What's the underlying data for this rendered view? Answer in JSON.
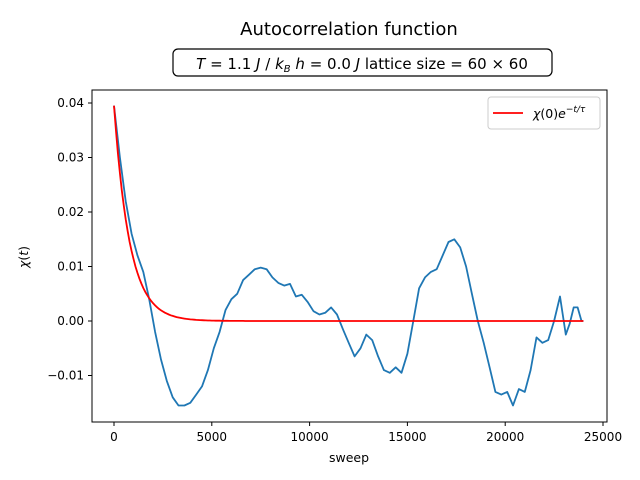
{
  "chart_data": {
    "type": "line",
    "title": "Autocorrelation function",
    "subtitle": "T = 1.1 J / k_B   h = 0.0 J   lattice size = 60 × 60",
    "subtitle_parts": {
      "T": "T = 1.1 J / k_B",
      "h": "h = 0.0 J",
      "lattice": "lattice size = 60 × 60"
    },
    "xlabel": "sweep",
    "ylabel": "χ(t)",
    "xlim": [
      -1200,
      25200
    ],
    "ylim": [
      -0.018,
      0.042
    ],
    "xticks": [
      0,
      5000,
      10000,
      15000,
      20000,
      25000
    ],
    "xtick_labels": [
      "0",
      "5000",
      "10000",
      "15000",
      "20000",
      "25000"
    ],
    "yticks": [
      -0.01,
      0.0,
      0.01,
      0.02,
      0.03,
      0.04
    ],
    "ytick_labels": [
      "−0.01",
      "0.00",
      "0.01",
      "0.02",
      "0.03",
      "0.04"
    ],
    "grid": false,
    "legend": {
      "position": "upper right",
      "entries": [
        "χ(0)e^{-t/τ}"
      ]
    },
    "series": [
      {
        "name": "χ(t)",
        "color": "#1f77b4",
        "x": [
          0,
          300,
          600,
          900,
          1200,
          1500,
          1800,
          2100,
          2400,
          2700,
          3000,
          3300,
          3600,
          3900,
          4200,
          4500,
          4800,
          5100,
          5400,
          5700,
          6000,
          6300,
          6600,
          6900,
          7200,
          7500,
          7800,
          8100,
          8400,
          8700,
          9000,
          9300,
          9600,
          9900,
          10200,
          10500,
          10800,
          11100,
          11400,
          11700,
          12000,
          12300,
          12600,
          12900,
          13200,
          13500,
          13800,
          14100,
          14400,
          14700,
          15000,
          15300,
          15600,
          15900,
          16200,
          16500,
          16800,
          17100,
          17400,
          17700,
          18000,
          18300,
          18600,
          18900,
          19200,
          19500,
          19800,
          20100,
          20400,
          20700,
          21000,
          21300,
          21600,
          21900,
          22200,
          22500,
          22800,
          23100,
          23300,
          23500,
          23700,
          23900,
          24000
        ],
        "values": [
          0.0395,
          0.03,
          0.022,
          0.016,
          0.012,
          0.009,
          0.004,
          -0.002,
          -0.007,
          -0.011,
          -0.014,
          -0.0155,
          -0.0155,
          -0.015,
          -0.0135,
          -0.012,
          -0.009,
          -0.005,
          -0.002,
          0.002,
          0.004,
          0.005,
          0.0075,
          0.0085,
          0.0095,
          0.0098,
          0.0095,
          0.008,
          0.007,
          0.0065,
          0.0068,
          0.0045,
          0.0048,
          0.0035,
          0.0018,
          0.0012,
          0.0015,
          0.0025,
          0.0012,
          -0.0015,
          -0.004,
          -0.0065,
          -0.005,
          -0.0025,
          -0.0035,
          -0.0065,
          -0.009,
          -0.0095,
          -0.0085,
          -0.0095,
          -0.006,
          0.0,
          0.006,
          0.008,
          0.009,
          0.0095,
          0.012,
          0.0145,
          0.015,
          0.0135,
          0.01,
          0.005,
          0.0,
          -0.004,
          -0.0085,
          -0.013,
          -0.0135,
          -0.013,
          -0.0155,
          -0.0125,
          -0.013,
          -0.009,
          -0.003,
          -0.004,
          -0.0035,
          0.0,
          0.0045,
          -0.0025,
          -0.0005,
          0.0025,
          0.0025,
          0.0,
          0.0
        ]
      },
      {
        "name": "χ(0)e^{-t/τ}",
        "color": "#ff0000",
        "amplitude": 0.0395,
        "tau": 800,
        "x_range": [
          0,
          24000
        ]
      }
    ]
  }
}
